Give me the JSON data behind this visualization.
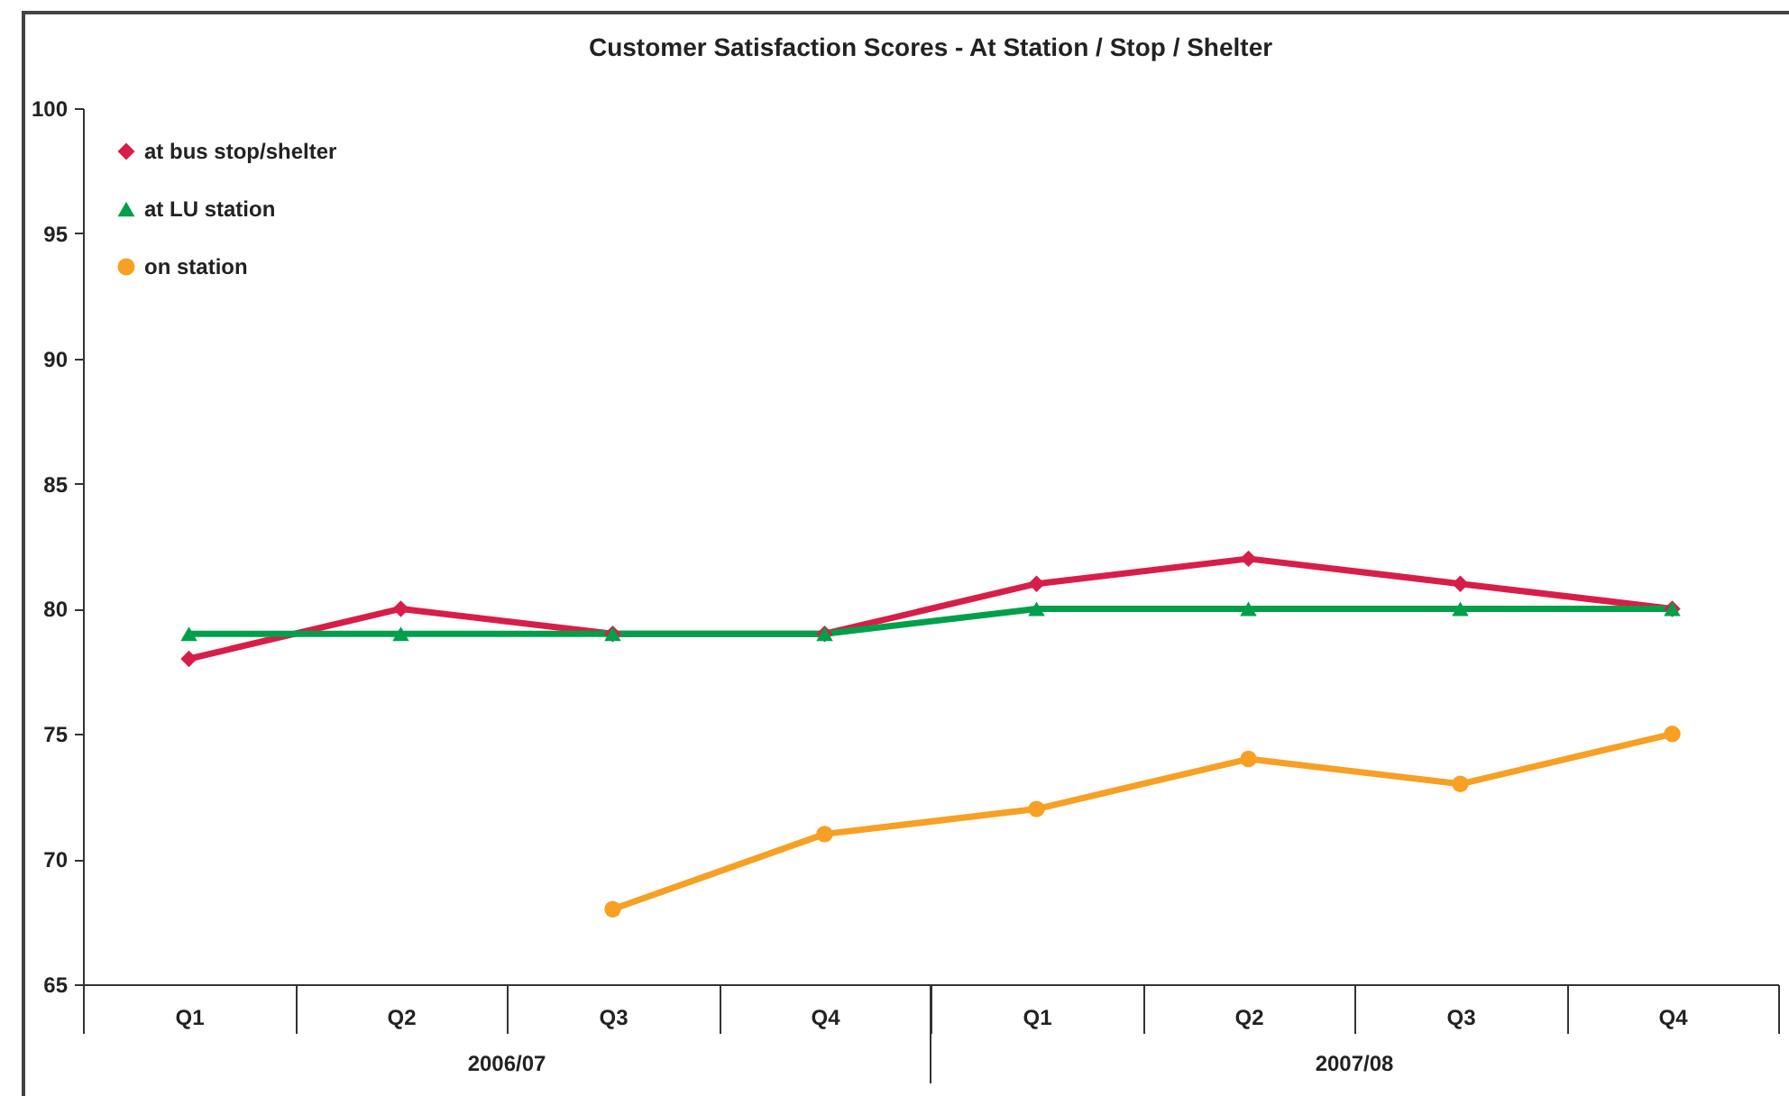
{
  "chart_data": {
    "type": "line",
    "title": "Customer Satisfaction Scores - At Station / Stop / Shelter",
    "categories": [
      "Q1",
      "Q2",
      "Q3",
      "Q4",
      "Q1",
      "Q2",
      "Q3",
      "Q4"
    ],
    "series": [
      {
        "name": "at bus stop/shelter",
        "color": "#d81e48",
        "marker": "diamond",
        "values": [
          78,
          80,
          79,
          79,
          81,
          82,
          81,
          80
        ]
      },
      {
        "name": "at LU station",
        "color": "#00a04b",
        "marker": "triangle",
        "values": [
          79,
          79,
          79,
          79,
          80,
          80,
          80,
          80
        ]
      },
      {
        "name": "on station",
        "color": "#f7a023",
        "marker": "circle",
        "values": [
          null,
          null,
          68,
          71,
          72,
          74,
          73,
          75
        ]
      }
    ],
    "ylim": [
      65,
      100
    ],
    "yticks": [
      65,
      70,
      75,
      80,
      85,
      90,
      95,
      100
    ],
    "annotations": [
      "2006/07",
      "2007/08"
    ],
    "legend": "top left",
    "line_style": "solid"
  }
}
